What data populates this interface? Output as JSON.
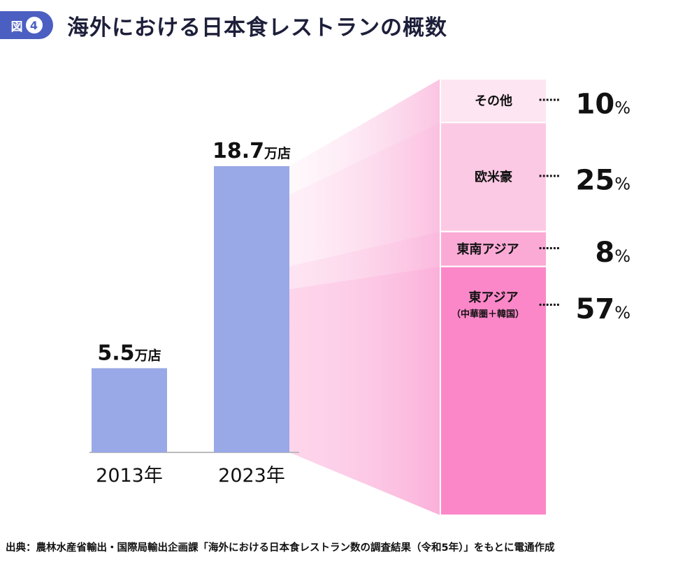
{
  "header": {
    "badge_label": "図",
    "badge_number": "4",
    "title": "海外における日本食レストランの概数"
  },
  "source": "出典：農林水産省輸出・国際局輸出企画課「海外における日本食レストラン数の調査結果（令和5年）」をもとに電通作成",
  "chart_data": [
    {
      "type": "bar",
      "categories": [
        "2013年",
        "2023年"
      ],
      "values": [
        5.5,
        18.7
      ],
      "unit": "万店",
      "data_labels": [
        "5.5",
        "18.7"
      ],
      "color": "#99a8e6"
    },
    {
      "type": "bar",
      "stacked": true,
      "unit": "%",
      "segments": [
        {
          "label": "その他",
          "sublabel": "",
          "value": 10,
          "color": "#fde5f1"
        },
        {
          "label": "欧米豪",
          "sublabel": "",
          "value": 25,
          "color": "#fcc9e4"
        },
        {
          "label": "東南アジア",
          "sublabel": "",
          "value": 8,
          "color": "#fbaad6"
        },
        {
          "label": "東アジア",
          "sublabel": "（中華圏＋韓国）",
          "value": 57,
          "color": "#fb87c8"
        }
      ]
    }
  ]
}
